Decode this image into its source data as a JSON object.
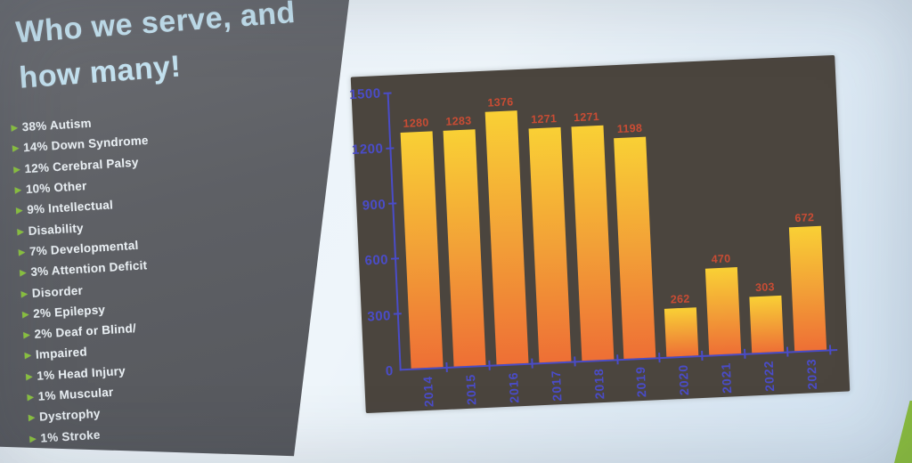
{
  "slide": {
    "title_lines": [
      "Who we serve, and",
      "how many!"
    ],
    "bullet_glyph": "▶",
    "bullets": [
      "38% Autism",
      "14% Down Syndrome",
      "12% Cerebral Palsy",
      "10% Other",
      "9% Intellectual",
      "Disability",
      "7% Developmental",
      "3% Attention Deficit",
      "Disorder",
      "2% Epilepsy",
      "2% Deaf or Blind/",
      "Impaired",
      "1% Head Injury",
      "1% Muscular",
      "Dystrophy",
      "1% Stroke"
    ]
  },
  "chart_data": {
    "type": "bar",
    "title": "",
    "categories": [
      "2014",
      "2015",
      "2016",
      "2017",
      "2018",
      "2019",
      "2020",
      "2021",
      "2022",
      "2023"
    ],
    "values": [
      1280,
      1283,
      1376,
      1271,
      1271,
      1198,
      262,
      470,
      303,
      672
    ],
    "xlabel": "",
    "ylabel": "",
    "ylim": [
      0,
      1500
    ],
    "y_ticks": [
      0,
      300,
      600,
      900,
      1200,
      1500
    ],
    "grid": false,
    "legend": "none",
    "bar_labels_shown": true,
    "x_labels_rotated_vertical": true
  },
  "colors": {
    "slide_panel_bg": "#5e6065",
    "title_text": "#c3e1ef",
    "bullet_text": "#e9eff3",
    "bullet_glyph": "#8dc63f",
    "screen_background": "#dcebf6",
    "chart_plot_bg": "#4b453e",
    "axis_and_tick_labels": "#4a4cc8",
    "bar_gradient_top": "#f9d035",
    "bar_gradient_bottom": "#ee6f35",
    "bar_value_labels": "#c94c34",
    "green_wall_strip": "#8fc43d"
  }
}
